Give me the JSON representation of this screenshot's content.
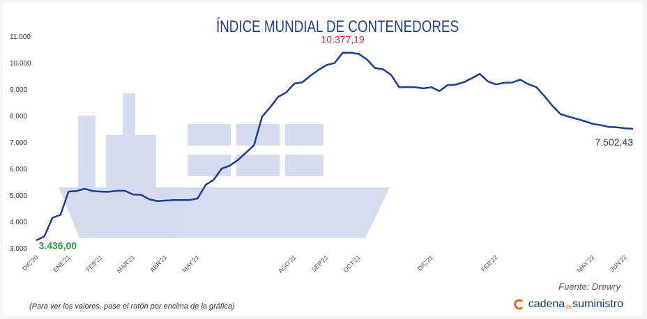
{
  "chart_data": {
    "type": "line",
    "title": "ÍNDICE MUNDIAL DE CONTENEDORES",
    "x_tick_labels": [
      "DIC'20",
      "ENE'21",
      "FEB'21",
      "MAR'21",
      "ABR'21",
      "MAY'21",
      "AGO'21",
      "SEP'21",
      "OCT'21",
      "DIC'21",
      "FEB'22",
      "MAY'22",
      "JUN'22"
    ],
    "x_tick_positions": [
      0,
      4,
      8,
      12,
      16,
      20,
      32,
      36,
      40,
      49,
      57,
      69,
      73
    ],
    "y_ticks": [
      3000,
      4000,
      5000,
      6000,
      7000,
      8000,
      9000,
      10000,
      11000
    ],
    "y_tick_labels": [
      "3.000",
      "4.000",
      "5.000",
      "6.000",
      "7.000",
      "8.000",
      "9.000",
      "10.000",
      "11.000"
    ],
    "ylim": [
      3000,
      11000
    ],
    "series": [
      {
        "name": "Índice Mundial de Contenedores",
        "color": "#1a3c9a",
        "x": [
          0,
          1,
          2,
          3,
          4,
          5,
          6,
          7,
          8,
          9,
          10,
          11,
          12,
          13,
          14,
          15,
          16,
          17,
          18,
          19,
          20,
          21,
          22,
          23,
          24,
          25,
          26,
          27,
          28,
          29,
          30,
          31,
          32,
          33,
          34,
          35,
          36,
          37,
          38,
          39,
          40,
          41,
          42,
          43,
          44,
          45,
          46,
          47,
          48,
          49,
          50,
          51,
          52,
          53,
          54,
          55,
          56,
          57,
          58,
          59,
          60,
          61,
          62,
          63,
          64,
          65,
          66,
          67,
          68,
          69,
          70,
          71,
          72,
          73,
          74
        ],
        "values": [
          3290,
          3436,
          4140,
          4250,
          5130,
          5150,
          5240,
          5150,
          5130,
          5120,
          5160,
          5160,
          5020,
          5010,
          4840,
          4770,
          4790,
          4810,
          4810,
          4810,
          4870,
          5380,
          5580,
          6000,
          6110,
          6320,
          6600,
          6880,
          7960,
          8310,
          8710,
          8880,
          9210,
          9260,
          9510,
          9730,
          9910,
          9990,
          10377,
          10377,
          10330,
          10120,
          9800,
          9750,
          9540,
          9070,
          9080,
          9070,
          9030,
          9070,
          8930,
          9150,
          9170,
          9260,
          9410,
          9580,
          9290,
          9180,
          9240,
          9250,
          9360,
          9190,
          9080,
          8740,
          8370,
          8060,
          7960,
          7880,
          7790,
          7690,
          7640,
          7570,
          7560,
          7520,
          7502
        ]
      }
    ],
    "annotations": [
      {
        "label": "3.436,00",
        "x": 1,
        "value": 3436,
        "color": "#27a33b"
      },
      {
        "label": "10.377,19",
        "x": 38,
        "value": 10377,
        "color": "#c8323c"
      },
      {
        "label": "7.502,43",
        "x": 74,
        "value": 7502,
        "color": "#1f3a78"
      }
    ]
  },
  "source_text": "Fuente: Drewry",
  "footnote": "(Para ver los valores, pase el ratón por encima de la gráfica)",
  "brand": {
    "part1": "cadena",
    "part2": "de",
    "part3": "suministro"
  }
}
